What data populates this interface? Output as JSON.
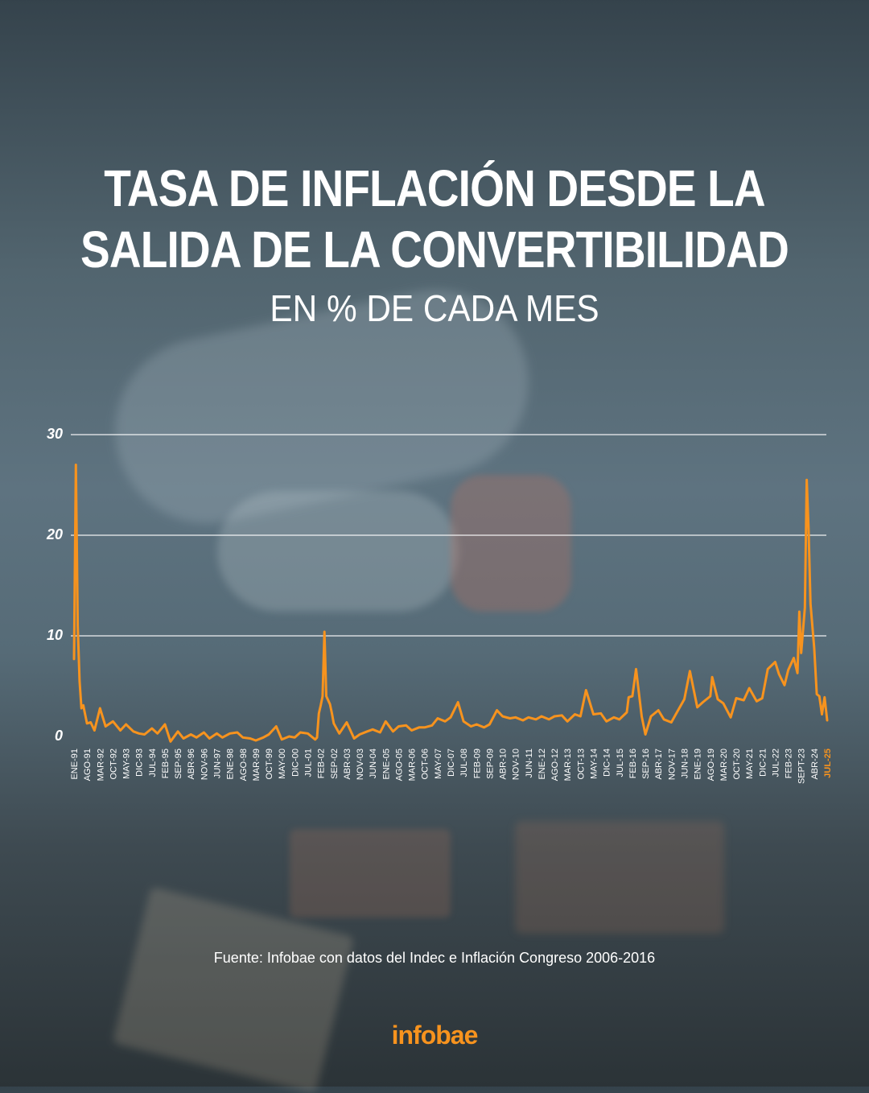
{
  "title_line1": "TASA DE INFLACIÓN DESDE LA",
  "title_line2": "SALIDA DE LA CONVERTIBILIDAD",
  "subtitle": "EN % DE CADA MES",
  "source": "Fuente: Infobae con datos del Indec e Inflación Congreso 2006-2016",
  "logo": "infobae",
  "colors": {
    "line": "#f7931e",
    "grid": "#ffffff",
    "text": "#ffffff",
    "last_label": "#f7931e"
  },
  "chart_data": {
    "type": "line",
    "title": "TASA DE INFLACIÓN DESDE LA SALIDA DE LA CONVERTIBILIDAD",
    "subtitle": "EN % DE CADA MES",
    "xlabel": "",
    "ylabel": "",
    "ylim": [
      0,
      30
    ],
    "yticks": [
      0,
      10,
      20,
      30
    ],
    "grid": true,
    "x_tick_labels": [
      "ENE-91",
      "AGO-91",
      "MAR-92",
      "OCT-92",
      "MAY-93",
      "DIC-93",
      "JUL-94",
      "FEB-95",
      "SEP-95",
      "ABR-96",
      "NOV-96",
      "JUN-97",
      "ENE-98",
      "AGO-98",
      "MAR-99",
      "OCT-99",
      "MAY-00",
      "DIC-00",
      "JUL-01",
      "FEB-02",
      "SEP-02",
      "ABR-03",
      "NOV-03",
      "JUN-04",
      "ENE-05",
      "AGO-05",
      "MAR-06",
      "OCT-06",
      "MAY-07",
      "DIC-07",
      "JUL-08",
      "FEB-09",
      "SEP-09",
      "ABR-10",
      "NOV-10",
      "JUN-11",
      "ENE-12",
      "AGO-12",
      "MAR-13",
      "OCT-13",
      "MAY-14",
      "DIC-14",
      "JUL-15",
      "FEB-16",
      "SEP-16",
      "ABR-17",
      "NOV-17",
      "JUN-18",
      "ENE-19",
      "AGO-19",
      "MAR-20",
      "OCT-20",
      "MAY-21",
      "DIC-21",
      "JUL-22",
      "FEB-23",
      "SEPT-23",
      "ABR-24",
      "JUL-25"
    ],
    "series": [
      {
        "x": [
          "ENE-91",
          "FEB-91",
          "MAR-91",
          "ABR-91",
          "MAY-91",
          "JUN-91",
          "AGO-91",
          "OCT-91",
          "DIC-91",
          "MAR-92",
          "JUN-92",
          "OCT-92",
          "FEB-93",
          "MAY-93",
          "SEP-93",
          "DIC-93",
          "MAR-94",
          "JUL-94",
          "OCT-94",
          "FEB-95",
          "MAY-95",
          "SEP-95",
          "DIC-95",
          "ABR-96",
          "JUL-96",
          "NOV-96",
          "FEB-97",
          "JUN-97",
          "SEP-97",
          "ENE-98",
          "MAY-98",
          "AGO-98",
          "DIC-98",
          "MAR-99",
          "JUL-99",
          "OCT-99",
          "FEB-00",
          "MAY-00",
          "SEP-00",
          "DIC-00",
          "MAR-01",
          "JUL-01",
          "NOV-01",
          "DIC-01",
          "ENE-02",
          "FEB-02",
          "MAR-02",
          "ABR-02",
          "MAY-02",
          "JUN-02",
          "JUL-02",
          "AGO-02",
          "SEP-02",
          "DIC-02",
          "ABR-03",
          "AGO-03",
          "NOV-03",
          "MAR-04",
          "JUN-04",
          "OCT-04",
          "ENE-05",
          "MAY-05",
          "AGO-05",
          "DIC-05",
          "MAR-06",
          "JUL-06",
          "OCT-06",
          "FEB-07",
          "MAY-07",
          "SEP-07",
          "DIC-07",
          "ABR-08",
          "JUL-08",
          "NOV-08",
          "FEB-09",
          "JUN-09",
          "SEP-09",
          "ENE-10",
          "ABR-10",
          "AGO-10",
          "NOV-10",
          "MAR-11",
          "JUN-11",
          "OCT-11",
          "ENE-12",
          "MAY-12",
          "AGO-12",
          "DIC-12",
          "MAR-13",
          "JUL-13",
          "OCT-13",
          "ENE-14",
          "MAY-14",
          "SEP-14",
          "DIC-14",
          "ABR-15",
          "JUL-15",
          "NOV-15",
          "DIC-15",
          "FEB-16",
          "ABR-16",
          "JUL-16",
          "SEP-16",
          "DIC-16",
          "ABR-17",
          "JUL-17",
          "NOV-17",
          "FEB-18",
          "JUN-18",
          "SEP-18",
          "ENE-19",
          "ABR-19",
          "AGO-19",
          "SEP-19",
          "DIC-19",
          "MAR-20",
          "JUL-20",
          "OCT-20",
          "FEB-21",
          "MAY-21",
          "SEP-21",
          "DIC-21",
          "MAR-22",
          "JUL-22",
          "SEP-22",
          "DIC-22",
          "FEB-23",
          "MAY-23",
          "JUL-23",
          "AGO-23",
          "SEPT-23",
          "NOV-23",
          "DIC-23",
          "ENE-24",
          "FEB-24",
          "MAR-24",
          "ABR-24",
          "JUL-24",
          "OCT-24",
          "ENE-25",
          "ABR-25",
          "JUL-25"
        ],
        "values": [
          7.7,
          27.0,
          11.0,
          5.5,
          2.8,
          3.1,
          1.3,
          1.4,
          0.6,
          2.8,
          1.0,
          1.5,
          0.6,
          1.2,
          0.5,
          0.3,
          0.2,
          0.8,
          0.3,
          1.2,
          -0.5,
          0.5,
          -0.2,
          0.2,
          -0.1,
          0.4,
          -0.2,
          0.3,
          -0.1,
          0.3,
          0.4,
          -0.1,
          -0.2,
          -0.4,
          -0.1,
          0.2,
          1.0,
          -0.3,
          0.0,
          -0.1,
          0.4,
          0.3,
          -0.3,
          -0.1,
          2.3,
          3.1,
          4.0,
          10.4,
          4.0,
          3.6,
          3.2,
          2.3,
          1.3,
          0.3,
          1.4,
          -0.2,
          0.2,
          0.5,
          0.7,
          0.4,
          1.5,
          0.5,
          1.0,
          1.1,
          0.6,
          0.9,
          0.9,
          1.1,
          1.8,
          1.5,
          1.9,
          3.4,
          1.5,
          1.0,
          1.2,
          0.9,
          1.2,
          2.6,
          2.0,
          1.8,
          1.9,
          1.6,
          1.9,
          1.7,
          2.0,
          1.7,
          2.0,
          2.1,
          1.5,
          2.2,
          2.0,
          4.6,
          2.2,
          2.3,
          1.5,
          1.9,
          1.7,
          2.4,
          3.9,
          4.0,
          6.7,
          2.0,
          0.2,
          2.0,
          2.6,
          1.7,
          1.4,
          2.4,
          3.7,
          6.5,
          2.9,
          3.4,
          4.0,
          5.9,
          3.7,
          3.3,
          1.9,
          3.8,
          3.6,
          4.8,
          3.5,
          3.8,
          6.7,
          7.4,
          6.2,
          5.1,
          6.6,
          7.8,
          6.3,
          12.4,
          8.3,
          12.8,
          25.5,
          20.6,
          13.2,
          11.0,
          8.8,
          4.2,
          4.0,
          2.2,
          3.9,
          1.6
        ]
      }
    ]
  }
}
